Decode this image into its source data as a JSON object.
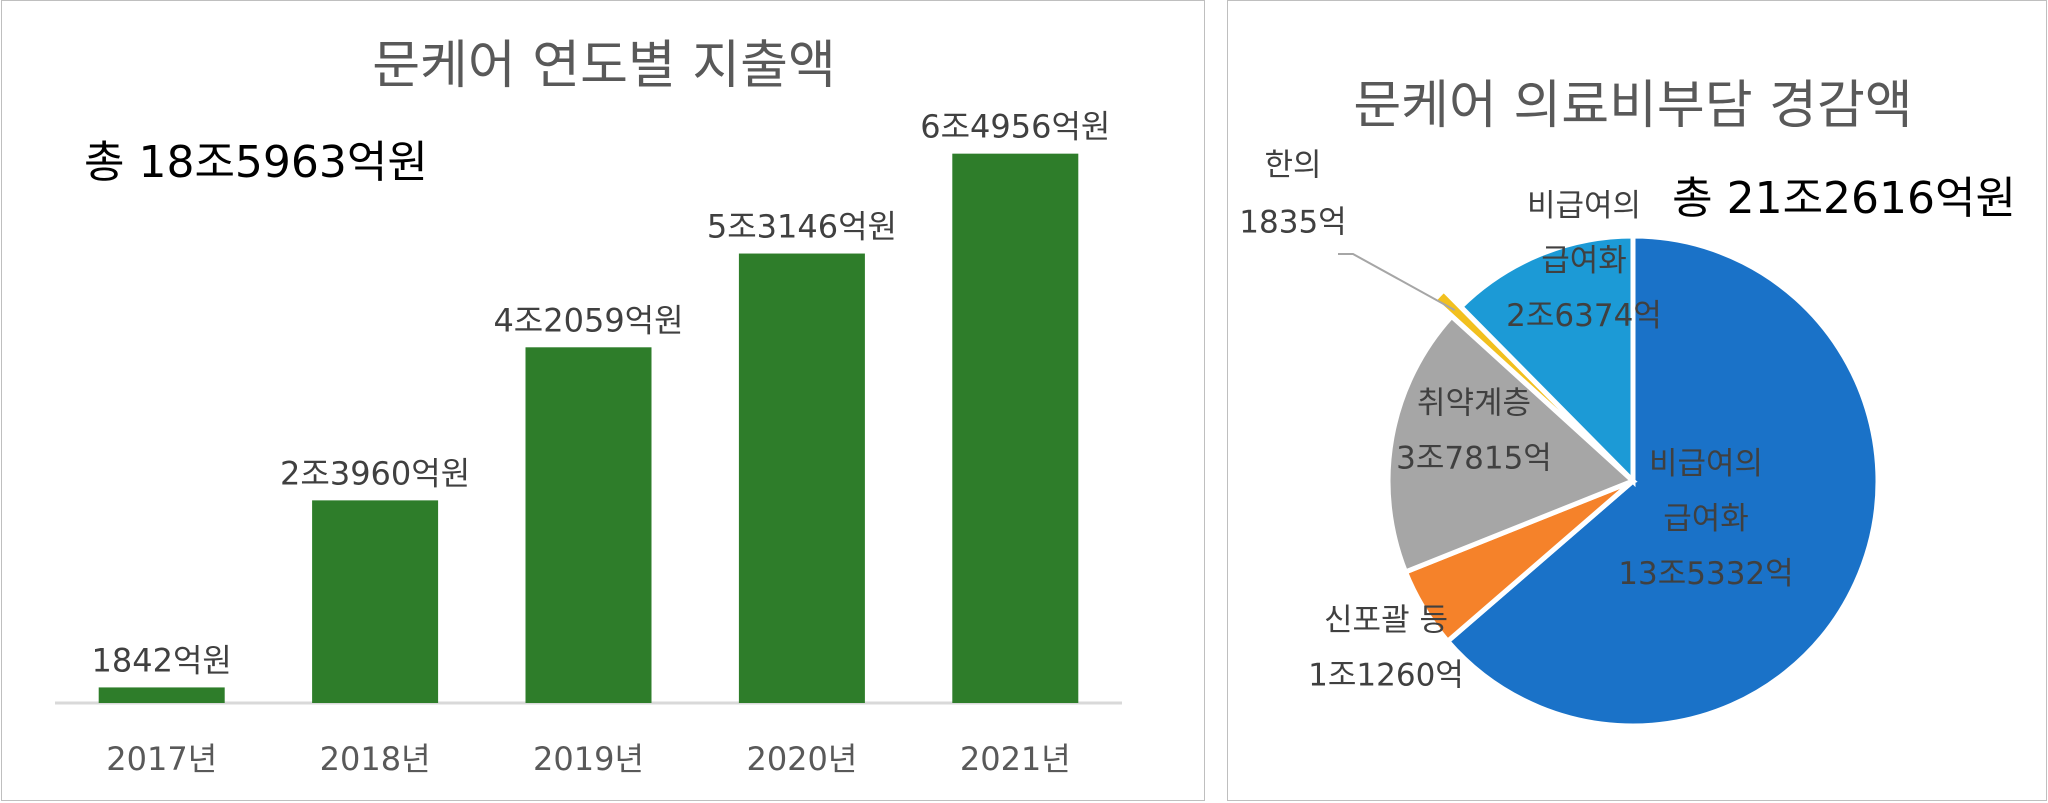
{
  "chart_data": [
    {
      "type": "bar",
      "title": "문케어 연도별 지출액",
      "annotation": "총 18조5963억원",
      "categories": [
        "2017년",
        "2018년",
        "2019년",
        "2020년",
        "2021년"
      ],
      "values": [
        1842,
        23960,
        42059,
        53146,
        64956
      ],
      "value_unit": "억원",
      "data_labels": [
        "1842억원",
        "2조3960억원",
        "4조2059억원",
        "5조3146억원",
        "6조4956억원"
      ],
      "ylim": [
        0,
        70000
      ],
      "grid": false,
      "color": "#2e7d2a"
    },
    {
      "type": "pie",
      "title": "문케어 의료비부담 경감액",
      "annotation": "총 21조2616억원",
      "slices": [
        {
          "name": "비급여의 급여화",
          "label_lines": [
            "비급여의",
            "급여화",
            "13조5332억"
          ],
          "value": 135332,
          "color": "#1a72c8"
        },
        {
          "name": "신포괄 등",
          "label_lines": [
            "신포괄 등",
            "1조1260억"
          ],
          "value": 11260,
          "color": "#f5822a"
        },
        {
          "name": "취약계층",
          "label_lines": [
            "취약계층",
            "3조7815억"
          ],
          "value": 37815,
          "color": "#a6a6a6"
        },
        {
          "name": "한의",
          "label_lines": [
            "한의",
            "1835억"
          ],
          "value": 1835,
          "color": "#f2c01e"
        },
        {
          "name": "비급여의 급여화",
          "label_lines": [
            "비급여의",
            "급여화",
            "2조6374억"
          ],
          "value": 26374,
          "color": "#1c9ad6"
        }
      ]
    }
  ]
}
